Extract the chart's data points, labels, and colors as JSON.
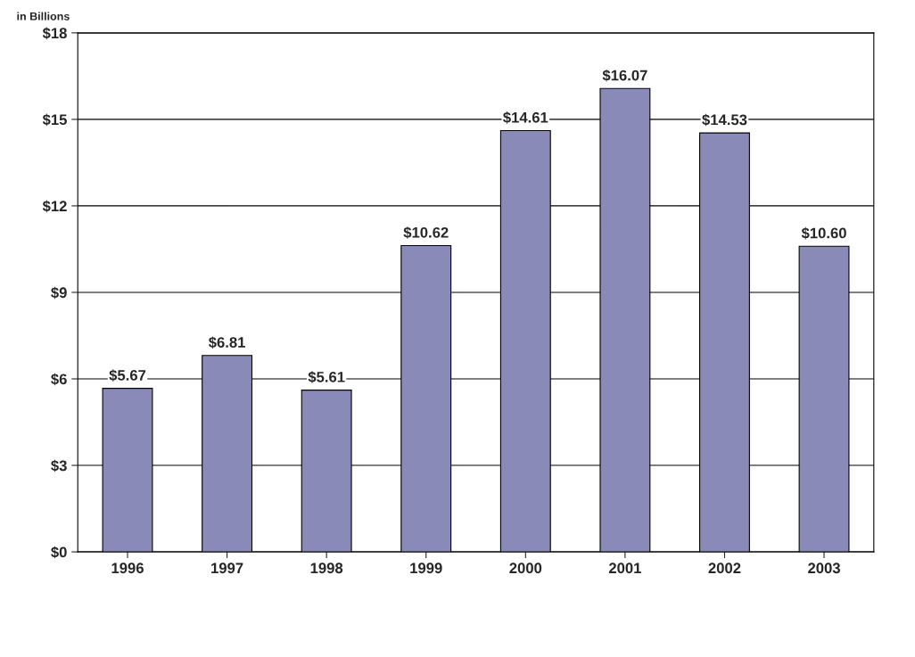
{
  "chart_data": {
    "type": "bar",
    "ylabel": "in Billions",
    "categories": [
      "1996",
      "1997",
      "1998",
      "1999",
      "2000",
      "2001",
      "2002",
      "2003"
    ],
    "values": [
      5.67,
      6.81,
      5.61,
      10.62,
      14.61,
      16.07,
      14.53,
      10.6
    ],
    "value_labels": [
      "$5.67",
      "$6.81",
      "$5.61",
      "$10.62",
      "$14.61",
      "$16.07",
      "$14.53",
      "$10.60"
    ],
    "color": "#8a8ab8",
    "ylim": [
      0,
      18
    ],
    "yticks": [
      {
        "value": 0,
        "label": "$0"
      },
      {
        "value": 3,
        "label": "$3"
      },
      {
        "value": 6,
        "label": "$6"
      },
      {
        "value": 9,
        "label": "$9"
      },
      {
        "value": 12,
        "label": "$12"
      },
      {
        "value": 15,
        "label": "$15"
      },
      {
        "value": 18,
        "label": "$18"
      }
    ],
    "grid": "y"
  }
}
